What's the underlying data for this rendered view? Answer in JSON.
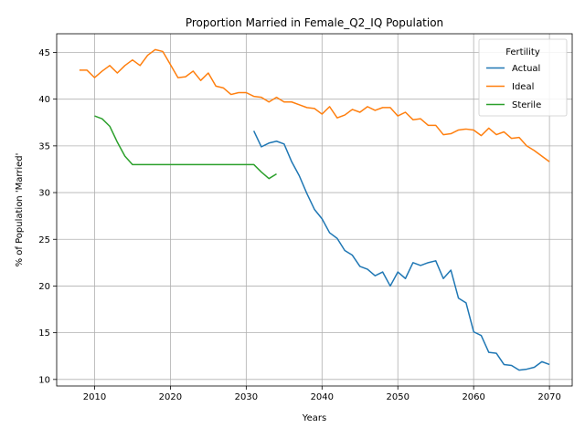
{
  "chart_data": {
    "type": "line",
    "title": "Proportion Married in Female_Q2_IQ Population",
    "xlabel": "Years",
    "ylabel": "% of Population 'Married'",
    "xlim": [
      2005,
      2073
    ],
    "ylim": [
      9.3,
      47.0
    ],
    "xticks": [
      2010,
      2020,
      2030,
      2040,
      2050,
      2060,
      2070
    ],
    "yticks": [
      10,
      15,
      20,
      25,
      30,
      35,
      40,
      45
    ],
    "grid": true,
    "legend": {
      "title": "Fertility",
      "position": "top-right"
    },
    "series": [
      {
        "name": "Actual",
        "color": "#1f77b4",
        "x": [
          2031,
          2032,
          2033,
          2034,
          2035,
          2036,
          2037,
          2038,
          2039,
          2040,
          2041,
          2042,
          2043,
          2044,
          2045,
          2046,
          2047,
          2048,
          2049,
          2050,
          2051,
          2052,
          2053,
          2054,
          2055,
          2056,
          2057,
          2058,
          2059,
          2060,
          2061,
          2062,
          2063,
          2064,
          2065,
          2066,
          2067,
          2068,
          2069,
          2070
        ],
        "y": [
          36.6,
          34.9,
          35.3,
          35.5,
          35.2,
          33.3,
          31.8,
          29.9,
          28.2,
          27.2,
          25.7,
          25.1,
          23.8,
          23.3,
          22.1,
          21.8,
          21.1,
          21.5,
          20.0,
          21.5,
          20.8,
          22.5,
          22.2,
          22.5,
          22.7,
          20.8,
          21.7,
          18.7,
          18.2,
          15.1,
          14.7,
          12.9,
          12.8,
          11.6,
          11.5,
          11.0,
          11.1,
          11.3,
          11.9,
          11.6
        ]
      },
      {
        "name": "Ideal",
        "color": "#ff7f0e",
        "x": [
          2008,
          2009,
          2010,
          2011,
          2012,
          2013,
          2014,
          2015,
          2016,
          2017,
          2018,
          2019,
          2020,
          2021,
          2022,
          2023,
          2024,
          2025,
          2026,
          2027,
          2028,
          2029,
          2030,
          2031,
          2032,
          2033,
          2034,
          2035,
          2036,
          2037,
          2038,
          2039,
          2040,
          2041,
          2042,
          2043,
          2044,
          2045,
          2046,
          2047,
          2048,
          2049,
          2050,
          2051,
          2052,
          2053,
          2054,
          2055,
          2056,
          2057,
          2058,
          2059,
          2060,
          2061,
          2062,
          2063,
          2064,
          2065,
          2066,
          2067,
          2068,
          2069,
          2070
        ],
        "y": [
          43.1,
          43.1,
          42.3,
          43.0,
          43.6,
          42.8,
          43.6,
          44.2,
          43.6,
          44.7,
          45.3,
          45.1,
          43.7,
          42.3,
          42.4,
          43.0,
          42.0,
          42.8,
          41.4,
          41.2,
          40.5,
          40.7,
          40.7,
          40.3,
          40.2,
          39.7,
          40.2,
          39.7,
          39.7,
          39.4,
          39.1,
          39.0,
          38.4,
          39.2,
          38.0,
          38.3,
          38.9,
          38.6,
          39.2,
          38.8,
          39.1,
          39.1,
          38.2,
          38.6,
          37.8,
          37.9,
          37.2,
          37.2,
          36.2,
          36.3,
          36.7,
          36.8,
          36.7,
          36.1,
          36.9,
          36.2,
          36.5,
          35.8,
          35.9,
          35.0,
          34.5,
          33.9,
          33.3
        ]
      },
      {
        "name": "Sterile",
        "color": "#2ca02c",
        "x": [
          2010,
          2011,
          2012,
          2013,
          2014,
          2015,
          2016,
          2017,
          2018,
          2019,
          2020,
          2021,
          2022,
          2023,
          2024,
          2025,
          2026,
          2027,
          2028,
          2029,
          2030,
          2031,
          2032,
          2033,
          2034
        ],
        "y": [
          38.2,
          37.9,
          37.1,
          35.4,
          33.9,
          33.0,
          33.0,
          33.0,
          33.0,
          33.0,
          33.0,
          33.0,
          33.0,
          33.0,
          33.0,
          33.0,
          33.0,
          33.0,
          33.0,
          33.0,
          33.0,
          33.0,
          32.2,
          31.5,
          32.0
        ]
      }
    ]
  }
}
